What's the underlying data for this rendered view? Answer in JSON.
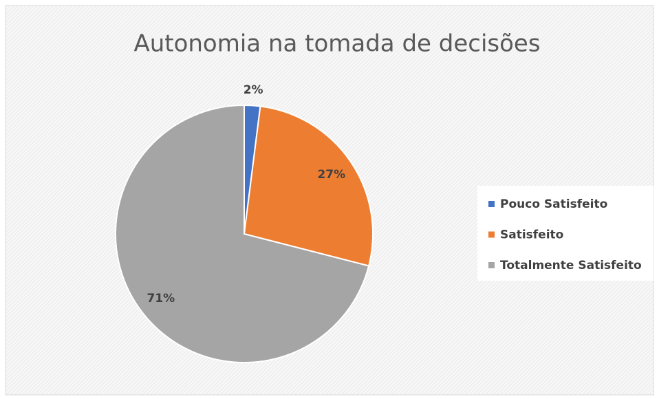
{
  "chart_data": {
    "type": "pie",
    "title": "Autonomia na tomada de decisões",
    "categories": [
      "Pouco Satisfeito",
      "Satisfeito",
      "Totalmente Satisfeito"
    ],
    "values": [
      2,
      27,
      71
    ],
    "value_labels": [
      "2%",
      "27%",
      "71%"
    ],
    "colors": [
      "#4472c4",
      "#ed7d31",
      "#a5a5a5"
    ],
    "legend": "right"
  }
}
